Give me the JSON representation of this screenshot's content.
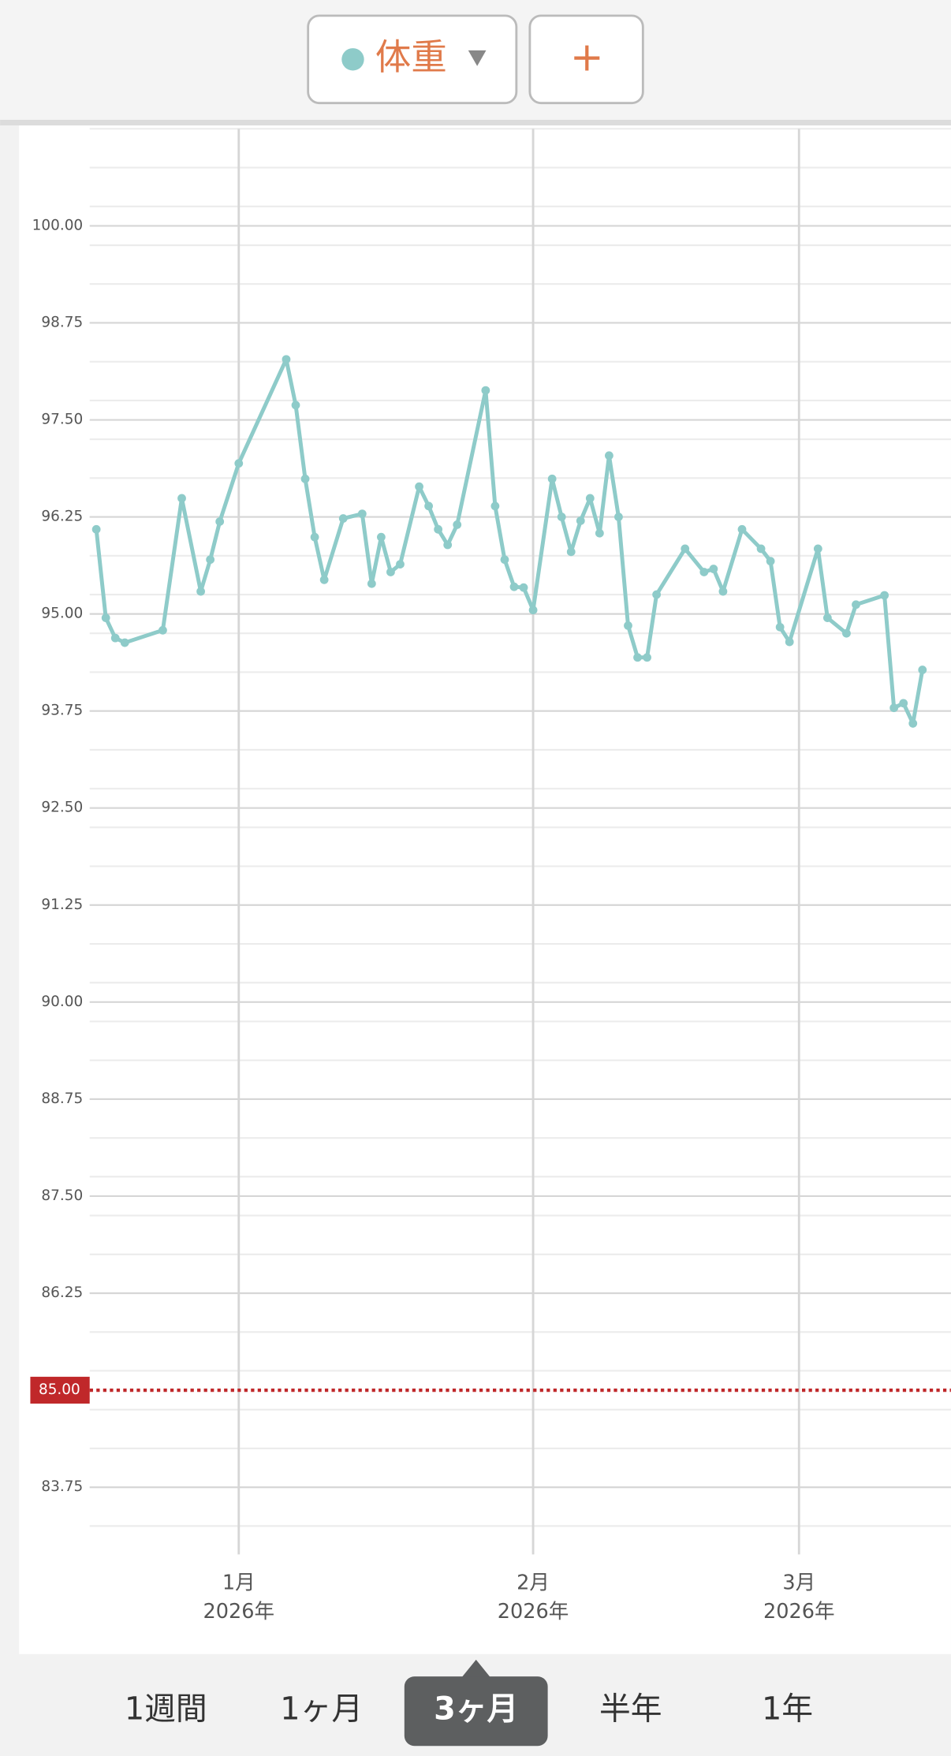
{
  "ui": {
    "add_button": "+",
    "tabs": [
      "1週間",
      "1ヶ月",
      "3ヶ月",
      "半年",
      "1年"
    ],
    "selected_tab": 2
  },
  "chart_data": {
    "type": "line",
    "series": [
      {
        "name": "体重",
        "color": "#8ecbc9",
        "x": [
          -15,
          -14,
          -13,
          -12,
          -8,
          -6,
          -4,
          -3,
          -2,
          0,
          5,
          6,
          7,
          8,
          9,
          11,
          13,
          14,
          15,
          16,
          17,
          19,
          20,
          21,
          22,
          23,
          26,
          27,
          28,
          29,
          30,
          31,
          33,
          34,
          35,
          36,
          37,
          38,
          39,
          40,
          41,
          42,
          43,
          44,
          47,
          49,
          50,
          51,
          53,
          55,
          56,
          57,
          58,
          61,
          62,
          64,
          65,
          68,
          69,
          70,
          71,
          72
        ],
        "values": [
          96.09,
          94.95,
          94.69,
          94.63,
          94.79,
          96.49,
          95.29,
          95.7,
          96.19,
          96.94,
          98.28,
          97.69,
          96.74,
          95.99,
          95.44,
          96.23,
          96.29,
          95.39,
          95.99,
          95.54,
          95.64,
          96.64,
          96.39,
          96.09,
          95.89,
          96.15,
          97.88,
          96.39,
          95.7,
          95.35,
          95.34,
          95.05,
          96.74,
          96.25,
          95.8,
          96.2,
          96.49,
          96.04,
          97.04,
          96.25,
          94.85,
          94.44,
          94.44,
          95.25,
          95.84,
          95.54,
          95.58,
          95.29,
          96.09,
          95.84,
          95.68,
          94.83,
          94.64,
          95.84,
          94.95,
          94.75,
          95.12,
          95.24,
          93.79,
          93.85,
          93.59,
          94.28
        ]
      }
    ],
    "xlim": [
      -15.7,
      75
    ],
    "xticks": [
      {
        "value": 0,
        "label": "1月\n2026年"
      },
      {
        "value": 31,
        "label": "2月\n2026年"
      },
      {
        "value": 59,
        "label": "3月\n2026年"
      }
    ],
    "ylim": [
      83,
      101.25
    ],
    "yticks": [
      {
        "value": 83.75,
        "label": "83.75"
      },
      {
        "value": 86.25,
        "label": "86.25"
      },
      {
        "value": 87.5,
        "label": "87.50"
      },
      {
        "value": 88.75,
        "label": "88.75"
      },
      {
        "value": 90,
        "label": "90.00"
      },
      {
        "value": 91.25,
        "label": "91.25"
      },
      {
        "value": 92.5,
        "label": "92.50"
      },
      {
        "value": 93.75,
        "label": "93.75"
      },
      {
        "value": 95,
        "label": "95.00"
      },
      {
        "value": 96.25,
        "label": "96.25"
      },
      {
        "value": 97.5,
        "label": "97.50"
      },
      {
        "value": 98.75,
        "label": "98.75"
      },
      {
        "value": 100,
        "label": "100.00"
      }
    ],
    "target": {
      "value": 85,
      "label": "85.00",
      "color": "#c0282a"
    },
    "grid": true
  }
}
